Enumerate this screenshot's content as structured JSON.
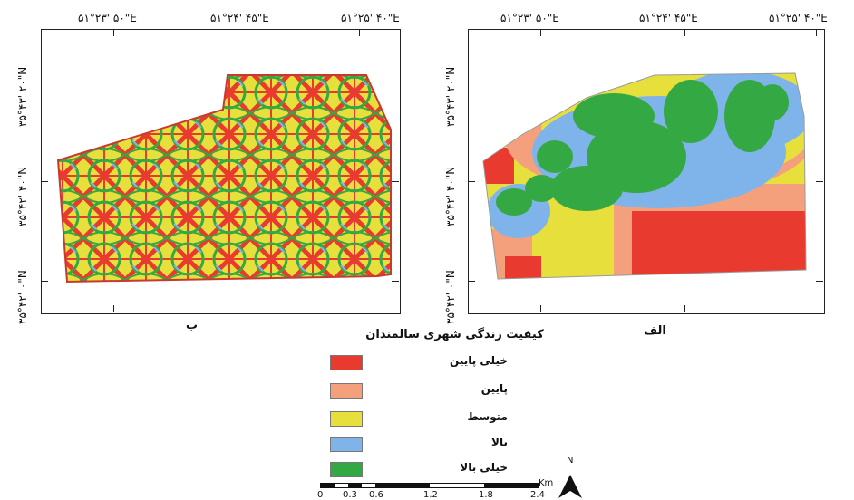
{
  "map": {
    "longitude_labels_top": [
      "۵۱°۲۳' ۵۰\"E",
      "۵۱°۲۴' ۴۵\"E",
      "۵۱°۲۵' ۴۰\"E",
      "۵۱°۲۳' ۵۰\"E",
      "۵۱°۲۴' ۴۵\"E",
      "۵۱°۲۵' ۴۰\"E"
    ],
    "latitude_labels_left": [
      "۳۵°۴۳' ۲۰\"N",
      "۳۵°۴۲' ۴۰\"N",
      "۳۵°۴۲' ۰\"N"
    ],
    "latitude_labels_middle": [
      "۳۵°۴۳' ۲۰\"N",
      "۳۵°۴۲' ۴۰\"N",
      "۳۵°۴۲' ۰\"N"
    ],
    "panel_left_label": "ب",
    "panel_right_label": "الف",
    "legend_title": "کیفیت زندگی شهری سالمندان",
    "legend": [
      {
        "label": "خیلی پایین",
        "color": "#e83a2e"
      },
      {
        "label": "پایین",
        "color": "#f4a07c"
      },
      {
        "label": "متوسط",
        "color": "#e7df3c"
      },
      {
        "label": "بالا",
        "color": "#7fb4ea"
      },
      {
        "label": "خیلی بالا",
        "color": "#34a843"
      }
    ],
    "scale_bar": {
      "unit": "Km",
      "ticks": [
        "0",
        "0.3",
        "0.6",
        "1.2",
        "1.8",
        "2.4"
      ]
    },
    "north_label": "N"
  }
}
